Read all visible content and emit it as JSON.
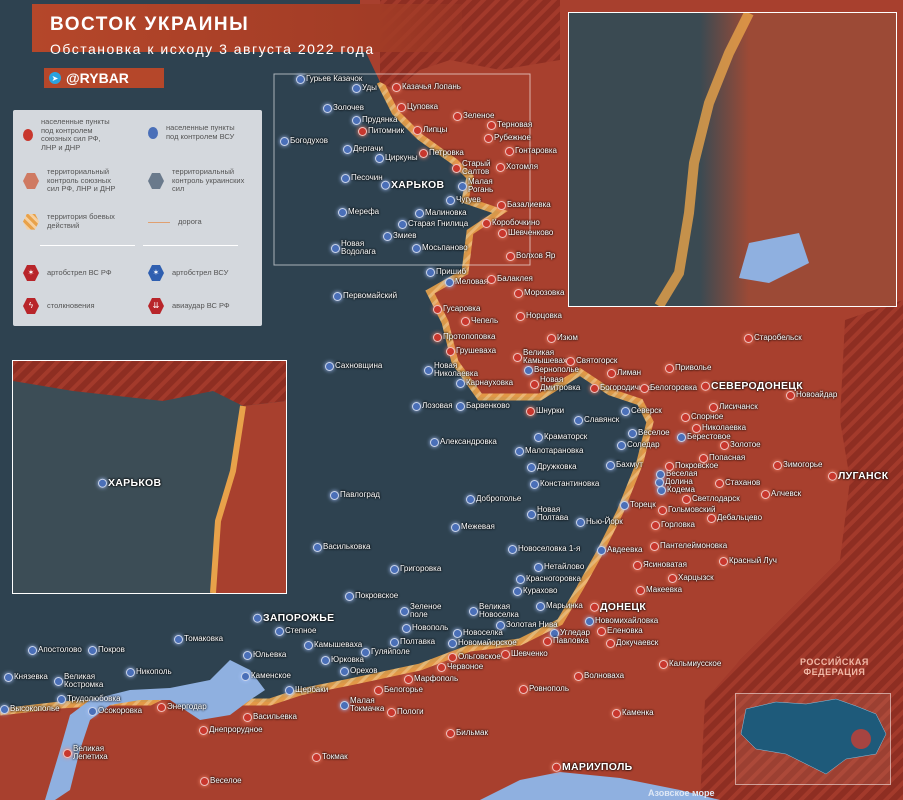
{
  "header": {
    "title": "ВОСТОК УКРАИНЫ",
    "subtitle": "Обстановка к исходу 3 августа 2022 года",
    "brand": "@RYBAR",
    "brand_icon": "telegram-icon"
  },
  "colors": {
    "russian_control": "#a8402e",
    "ukrainian_control": "#2e4250",
    "combat_zone": "#e8a24a",
    "water": "#8fb0e0",
    "accent": "#b5472a"
  },
  "legend": {
    "items": [
      {
        "label": "населенные пункты\nпод контролем\nсоюзных сил РФ,\nЛНР и ДНР",
        "icon": "red-pin-icon"
      },
      {
        "label": "населенные пункты\nпод контролем ВСУ",
        "icon": "blue-pin-icon"
      },
      {
        "label": "территориальный\nконтроль союзных\nсил РФ, ЛНР и ДНР",
        "icon": "red-hexagon-icon"
      },
      {
        "label": "территориальный\nконтроль украинских\nсил",
        "icon": "blue-hexagon-icon"
      },
      {
        "label": "территория боевых\nдействий",
        "icon": "striped-hexagon-icon"
      },
      {
        "label": "дорога",
        "icon": "road-line-icon"
      },
      {
        "label": "артобстрел ВС РФ",
        "icon": "artillery-red-icon"
      },
      {
        "label": "артобстрел ВСУ",
        "icon": "artillery-blue-icon"
      },
      {
        "label": "столкновения",
        "icon": "clash-icon"
      },
      {
        "label": "авиаудар ВС РФ",
        "icon": "airstrike-icon"
      }
    ]
  },
  "map": {
    "sea_label": "Азовское море",
    "country_label": "РОССИЙСКАЯ\nФЕДЕРАЦИЯ",
    "inset_left_city": "ХАРЬКОВ",
    "cities": [
      {
        "name": "Гурьев Казачок",
        "control": "ua"
      },
      {
        "name": "Уды",
        "control": "ua"
      },
      {
        "name": "Казачья Лопань",
        "control": "ru"
      },
      {
        "name": "Золочев",
        "control": "ua"
      },
      {
        "name": "Цуповка",
        "control": "ru"
      },
      {
        "name": "Прудянка",
        "control": "ua"
      },
      {
        "name": "Зеленое",
        "control": "ru"
      },
      {
        "name": "Питомник",
        "control": "ru"
      },
      {
        "name": "Липцы",
        "control": "ru"
      },
      {
        "name": "Терновая",
        "control": "ru"
      },
      {
        "name": "Богодухов",
        "control": "ua"
      },
      {
        "name": "Рубежное",
        "control": "ru"
      },
      {
        "name": "Дергачи",
        "control": "ua"
      },
      {
        "name": "Петровка",
        "control": "ru"
      },
      {
        "name": "Гонтаровка",
        "control": "ru"
      },
      {
        "name": "Циркуны",
        "control": "ua"
      },
      {
        "name": "Старый\nСалтов",
        "control": "ru"
      },
      {
        "name": "Хотомля",
        "control": "ru"
      },
      {
        "name": "Песочин",
        "control": "ua"
      },
      {
        "name": "ХАРЬКОВ",
        "control": "ua",
        "major": true
      },
      {
        "name": "Малая\nРогань",
        "control": "ua"
      },
      {
        "name": "Чугуев",
        "control": "ua"
      },
      {
        "name": "Базалиевка",
        "control": "ru"
      },
      {
        "name": "Мерефа",
        "control": "ua"
      },
      {
        "name": "Малиновка",
        "control": "ua"
      },
      {
        "name": "Старая Гнилица",
        "control": "ua"
      },
      {
        "name": "Коробочкино",
        "control": "ru"
      },
      {
        "name": "Шевченково",
        "control": "ru"
      },
      {
        "name": "Змиев",
        "control": "ua"
      },
      {
        "name": "Новая\nВодолага",
        "control": "ua"
      },
      {
        "name": "Мосьпаново",
        "control": "ua"
      },
      {
        "name": "Волхов Яр",
        "control": "ru"
      },
      {
        "name": "Пришиб",
        "control": "ua"
      },
      {
        "name": "Меловая",
        "control": "ua"
      },
      {
        "name": "Балаклея",
        "control": "ru"
      },
      {
        "name": "Морозовка",
        "control": "ru"
      },
      {
        "name": "Первомайский",
        "control": "ua"
      },
      {
        "name": "Гусаровка",
        "control": "ru"
      },
      {
        "name": "Норцовка",
        "control": "ru"
      },
      {
        "name": "Чепель",
        "control": "ru"
      },
      {
        "name": "Протопоповка",
        "control": "ru"
      },
      {
        "name": "Изюм",
        "control": "ru"
      },
      {
        "name": "Грушеваха",
        "control": "ru"
      },
      {
        "name": "Великая\nКамышеваха",
        "control": "ru"
      },
      {
        "name": "Сахновщина",
        "control": "ua"
      },
      {
        "name": "Святогорск",
        "control": "ru"
      },
      {
        "name": "Новая\nНиколаевка",
        "control": "ua"
      },
      {
        "name": "Вернополье",
        "control": "ua"
      },
      {
        "name": "Новая\nДмитровка",
        "control": "ru"
      },
      {
        "name": "Лиман",
        "control": "ru"
      },
      {
        "name": "Карнауховка",
        "control": "ua"
      },
      {
        "name": "Богородичное",
        "control": "ru"
      },
      {
        "name": "Лозовая",
        "control": "ua"
      },
      {
        "name": "Барвенково",
        "control": "ua"
      },
      {
        "name": "Шнурки",
        "control": "ru"
      },
      {
        "name": "Славянск",
        "control": "ua"
      },
      {
        "name": "Александровка",
        "control": "ua"
      },
      {
        "name": "Краматорск",
        "control": "ua"
      },
      {
        "name": "Малотарановка",
        "control": "ua"
      },
      {
        "name": "Дружковка",
        "control": "ua"
      },
      {
        "name": "Константиновка",
        "control": "ua"
      },
      {
        "name": "Павлоград",
        "control": "ua"
      },
      {
        "name": "Доброполье",
        "control": "ua"
      },
      {
        "name": "Новая\nПолтава",
        "control": "ua"
      },
      {
        "name": "Межевая",
        "control": "ua"
      },
      {
        "name": "Нью-Йорк",
        "control": "ua"
      },
      {
        "name": "Торецк",
        "control": "ua"
      },
      {
        "name": "Васильковка",
        "control": "ua"
      },
      {
        "name": "Новоселовка 1-я",
        "control": "ua"
      },
      {
        "name": "Нетайлово",
        "control": "ua"
      },
      {
        "name": "Григоровка",
        "control": "ua"
      },
      {
        "name": "Красногоровка",
        "control": "ua"
      },
      {
        "name": "Курахово",
        "control": "ua"
      },
      {
        "name": "Марьинка",
        "control": "ua"
      },
      {
        "name": "Покровское",
        "control": "ua"
      },
      {
        "name": "Зеленое\nполе",
        "control": "ua"
      },
      {
        "name": "Великая\nНовоселка",
        "control": "ua"
      },
      {
        "name": "Новополь",
        "control": "ua"
      },
      {
        "name": "Золотая Нива",
        "control": "ua"
      },
      {
        "name": "Угледар",
        "control": "ua"
      },
      {
        "name": "Новоселка",
        "control": "ua"
      },
      {
        "name": "Полтавка",
        "control": "ua"
      },
      {
        "name": "Гуляйполе",
        "control": "ua"
      },
      {
        "name": "Новомайорское",
        "control": "ua"
      },
      {
        "name": "Павловка",
        "control": "ru"
      },
      {
        "name": "Шевченко",
        "control": "ru"
      },
      {
        "name": "Ольговское",
        "control": "ru"
      },
      {
        "name": "Червоное",
        "control": "ru"
      },
      {
        "name": "Марфополь",
        "control": "ru"
      },
      {
        "name": "Белогорье",
        "control": "ru"
      },
      {
        "name": "Малая\nТокмачка",
        "control": "ua"
      },
      {
        "name": "Пологи",
        "control": "ru"
      },
      {
        "name": "Бильмак",
        "control": "ru"
      },
      {
        "name": "Токмак",
        "control": "ru"
      },
      {
        "name": "Веселое",
        "control": "ru"
      },
      {
        "name": "Васильевка",
        "control": "ru"
      },
      {
        "name": "Днепрорудное",
        "control": "ru"
      },
      {
        "name": "Энергодар",
        "control": "ru"
      },
      {
        "name": "ЗАПОРОЖЬЕ",
        "control": "ua",
        "major": true
      },
      {
        "name": "Степное",
        "control": "ua"
      },
      {
        "name": "Томаковка",
        "control": "ua"
      },
      {
        "name": "Камышеваха",
        "control": "ua"
      },
      {
        "name": "Юльевка",
        "control": "ua"
      },
      {
        "name": "Юрковка",
        "control": "ua"
      },
      {
        "name": "Апостолово",
        "control": "ua"
      },
      {
        "name": "Покров",
        "control": "ua"
      },
      {
        "name": "Орехов",
        "control": "ua"
      },
      {
        "name": "Каменское",
        "control": "ua"
      },
      {
        "name": "Щербаки",
        "control": "ua"
      },
      {
        "name": "Никополь",
        "control": "ua"
      },
      {
        "name": "Великая\nКостромка",
        "control": "ua"
      },
      {
        "name": "Князевка",
        "control": "ua"
      },
      {
        "name": "Трудолюбовка",
        "control": "ua"
      },
      {
        "name": "Высокополье",
        "control": "ua"
      },
      {
        "name": "Осокоровка",
        "control": "ua"
      },
      {
        "name": "Великая\nЛепетиха",
        "control": "ru"
      },
      {
        "name": "ДОНЕЦК",
        "control": "ru",
        "major": true
      },
      {
        "name": "Новомихайловка",
        "control": "ua"
      },
      {
        "name": "Еленовка",
        "control": "ru"
      },
      {
        "name": "Докучаевск",
        "control": "ru"
      },
      {
        "name": "Кальмиусское",
        "control": "ru"
      },
      {
        "name": "Волноваха",
        "control": "ru"
      },
      {
        "name": "Ровнополь",
        "control": "ru"
      },
      {
        "name": "Каменка",
        "control": "ru"
      },
      {
        "name": "МАРИУПОЛЬ",
        "control": "ru",
        "major": true
      },
      {
        "name": "Макеевка",
        "control": "ru"
      },
      {
        "name": "Харцызск",
        "control": "ru"
      },
      {
        "name": "Ясиноватая",
        "control": "ru"
      },
      {
        "name": "Красный Луч",
        "control": "ru"
      },
      {
        "name": "Авдеевка",
        "control": "ua"
      },
      {
        "name": "Пантелеймоновка",
        "control": "ru"
      },
      {
        "name": "Горловка",
        "control": "ru"
      },
      {
        "name": "Дебальцево",
        "control": "ru"
      },
      {
        "name": "Гольмовский",
        "control": "ru"
      },
      {
        "name": "Светлодарск",
        "control": "ru"
      },
      {
        "name": "Кодема",
        "control": "ua"
      },
      {
        "name": "Долина",
        "control": "ua"
      },
      {
        "name": "Веселая",
        "control": "ua"
      },
      {
        "name": "Покровское",
        "control": "ru"
      },
      {
        "name": "Стаханов",
        "control": "ru"
      },
      {
        "name": "Алчевск",
        "control": "ru"
      },
      {
        "name": "Бахмут",
        "control": "ua"
      },
      {
        "name": "Зимогорье",
        "control": "ru"
      },
      {
        "name": "ЛУГАНСК",
        "control": "ru",
        "major": true
      },
      {
        "name": "Попасная",
        "control": "ru"
      },
      {
        "name": "Соледар",
        "control": "ua"
      },
      {
        "name": "Золотое",
        "control": "ru"
      },
      {
        "name": "Берестовое",
        "control": "ua"
      },
      {
        "name": "Веселое",
        "control": "ua"
      },
      {
        "name": "Николаевка",
        "control": "ru"
      },
      {
        "name": "Спорное",
        "control": "ru"
      },
      {
        "name": "Северск",
        "control": "ua"
      },
      {
        "name": "Лисичанск",
        "control": "ru"
      },
      {
        "name": "Белогоровка",
        "control": "ru"
      },
      {
        "name": "СЕВЕРОДОНЕЦК",
        "control": "ru",
        "major": true
      },
      {
        "name": "Новоайдар",
        "control": "ru"
      },
      {
        "name": "Приволье",
        "control": "ru"
      },
      {
        "name": "Старобельск",
        "control": "ru"
      }
    ]
  }
}
